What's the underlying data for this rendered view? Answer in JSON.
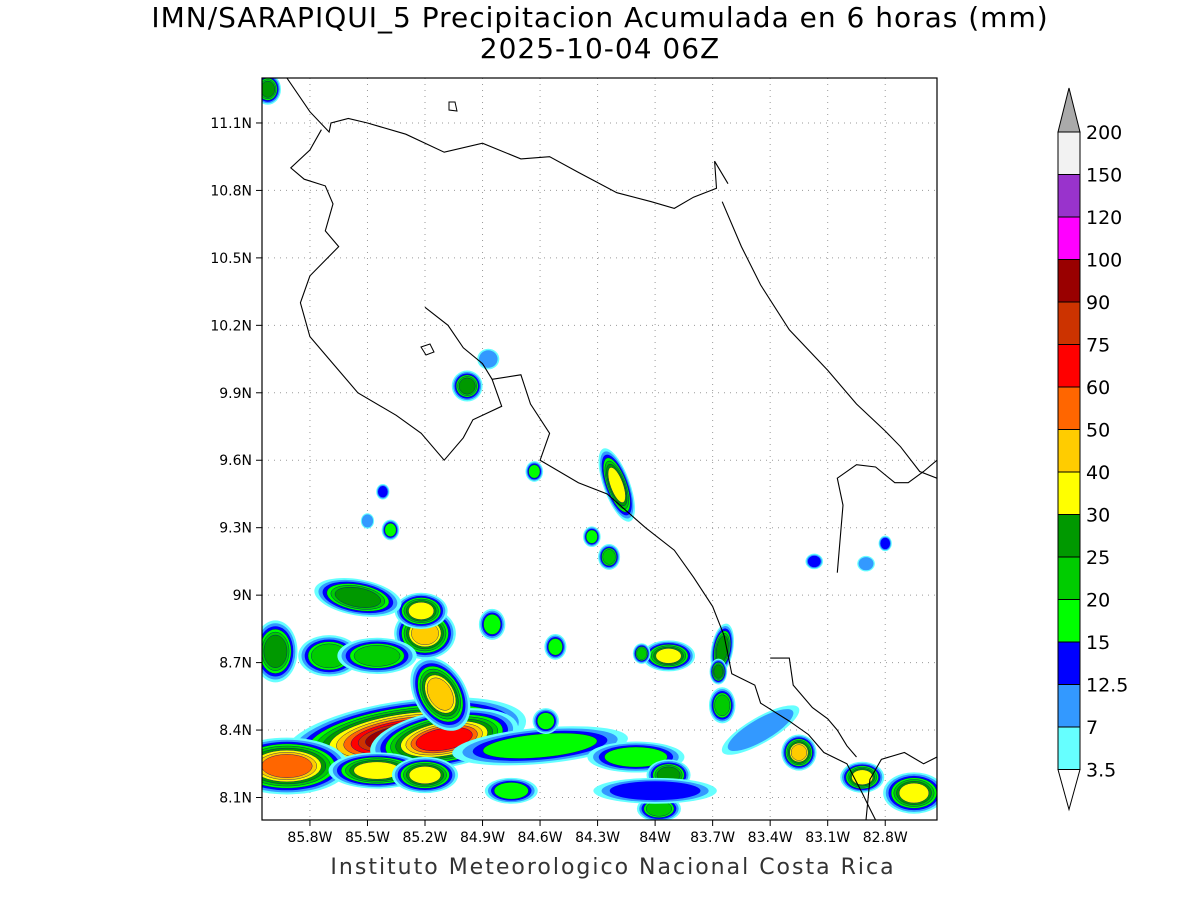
{
  "title": {
    "line1": "IMN/SARAPIQUI_5 Precipitacion Acumulada en 6 horas (mm)",
    "line2": "2025-10-04 06Z"
  },
  "footer": "Instituto Meteorologico Nacional Costa Rica",
  "map": {
    "lon_range": [
      -86.05,
      -82.53
    ],
    "lat_range": [
      8.0,
      11.3
    ],
    "lon_ticks": [
      {
        "value": -85.8,
        "label": "85.8W"
      },
      {
        "value": -85.5,
        "label": "85.5W"
      },
      {
        "value": -85.2,
        "label": "85.2W"
      },
      {
        "value": -84.9,
        "label": "84.9W"
      },
      {
        "value": -84.6,
        "label": "84.6W"
      },
      {
        "value": -84.3,
        "label": "84.3W"
      },
      {
        "value": -84.0,
        "label": "84W"
      },
      {
        "value": -83.7,
        "label": "83.7W"
      },
      {
        "value": -83.4,
        "label": "83.4W"
      },
      {
        "value": -83.1,
        "label": "83.1W"
      },
      {
        "value": -82.8,
        "label": "82.8W"
      }
    ],
    "lat_ticks": [
      {
        "value": 8.1,
        "label": "8.1N"
      },
      {
        "value": 8.4,
        "label": "8.4N"
      },
      {
        "value": 8.7,
        "label": "8.7N"
      },
      {
        "value": 9.0,
        "label": "9N"
      },
      {
        "value": 9.3,
        "label": "9.3N"
      },
      {
        "value": 9.6,
        "label": "9.6N"
      },
      {
        "value": 9.9,
        "label": "9.9N"
      },
      {
        "value": 10.2,
        "label": "10.2N"
      },
      {
        "value": 10.5,
        "label": "10.5N"
      },
      {
        "value": 10.8,
        "label": "10.8N"
      },
      {
        "value": 11.1,
        "label": "11.1N"
      }
    ],
    "grid": "dotted"
  },
  "legend": {
    "top_label": "200",
    "classes": [
      {
        "label": "3.5",
        "color": "#ffffff"
      },
      {
        "label": "7",
        "color": "#66ffff"
      },
      {
        "label": "12.5",
        "color": "#3399ff"
      },
      {
        "label": "15",
        "color": "#0000ff"
      },
      {
        "label": "20",
        "color": "#00ff00"
      },
      {
        "label": "25",
        "color": "#00cc00"
      },
      {
        "label": "30",
        "color": "#009900"
      },
      {
        "label": "40",
        "color": "#ffff00"
      },
      {
        "label": "50",
        "color": "#ffcc00"
      },
      {
        "label": "60",
        "color": "#ff6600"
      },
      {
        "label": "75",
        "color": "#ff0000"
      },
      {
        "label": "90",
        "color": "#cc3300"
      },
      {
        "label": "100",
        "color": "#990000"
      },
      {
        "label": "120",
        "color": "#ff00ff"
      },
      {
        "label": "150",
        "color": "#9933cc"
      },
      {
        "label": "200",
        "color": "#f2f2f2"
      }
    ],
    "over_color": "#aaaaaa"
  },
  "precip_cells": [
    {
      "lon": -85.3,
      "lat": 8.37,
      "a": 0.55,
      "b": 0.14,
      "rot": -8,
      "level": 12
    },
    {
      "lon": -85.1,
      "lat": 8.36,
      "a": 0.34,
      "b": 0.11,
      "rot": -10,
      "level": 10
    },
    {
      "lon": -85.12,
      "lat": 8.56,
      "a": 0.18,
      "b": 0.1,
      "rot": 60,
      "level": 8
    },
    {
      "lon": -85.2,
      "lat": 8.83,
      "a": 0.14,
      "b": 0.1,
      "rot": 0,
      "level": 8
    },
    {
      "lon": -85.22,
      "lat": 8.93,
      "a": 0.12,
      "b": 0.07,
      "rot": 0,
      "level": 7
    },
    {
      "lon": -85.55,
      "lat": 8.99,
      "a": 0.2,
      "b": 0.07,
      "rot": 10,
      "level": 6
    },
    {
      "lon": -85.7,
      "lat": 8.73,
      "a": 0.14,
      "b": 0.08,
      "rot": 0,
      "level": 5
    },
    {
      "lon": -85.45,
      "lat": 8.73,
      "a": 0.18,
      "b": 0.07,
      "rot": 0,
      "level": 5
    },
    {
      "lon": -85.92,
      "lat": 8.24,
      "a": 0.28,
      "b": 0.11,
      "rot": 0,
      "level": 9
    },
    {
      "lon": -85.45,
      "lat": 8.22,
      "a": 0.22,
      "b": 0.07,
      "rot": 0,
      "level": 7
    },
    {
      "lon": -85.2,
      "lat": 8.2,
      "a": 0.15,
      "b": 0.07,
      "rot": 0,
      "level": 7
    },
    {
      "lon": -85.98,
      "lat": 8.75,
      "a": 0.1,
      "b": 0.12,
      "rot": 0,
      "level": 6
    },
    {
      "lon": -86.02,
      "lat": 11.25,
      "a": 0.06,
      "b": 0.06,
      "rot": 0,
      "level": 6
    },
    {
      "lon": -84.6,
      "lat": 8.33,
      "a": 0.4,
      "b": 0.07,
      "rot": -5,
      "level": 4
    },
    {
      "lon": -84.1,
      "lat": 8.28,
      "a": 0.22,
      "b": 0.06,
      "rot": 0,
      "level": 4
    },
    {
      "lon": -84.85,
      "lat": 8.87,
      "a": 0.06,
      "b": 0.06,
      "rot": 0,
      "level": 4
    },
    {
      "lon": -84.52,
      "lat": 8.77,
      "a": 0.05,
      "b": 0.05,
      "rot": 0,
      "level": 4
    },
    {
      "lon": -84.57,
      "lat": 8.44,
      "a": 0.06,
      "b": 0.05,
      "rot": 0,
      "level": 4
    },
    {
      "lon": -84.75,
      "lat": 8.13,
      "a": 0.12,
      "b": 0.05,
      "rot": 0,
      "level": 4
    },
    {
      "lon": -84.2,
      "lat": 9.49,
      "a": 0.06,
      "b": 0.15,
      "rot": -20,
      "level": 7
    },
    {
      "lon": -84.24,
      "lat": 9.17,
      "a": 0.05,
      "b": 0.05,
      "rot": 0,
      "level": 5
    },
    {
      "lon": -84.33,
      "lat": 9.26,
      "a": 0.04,
      "b": 0.04,
      "rot": 0,
      "level": 4
    },
    {
      "lon": -84.63,
      "lat": 9.55,
      "a": 0.04,
      "b": 0.04,
      "rot": 0,
      "level": 4
    },
    {
      "lon": -85.38,
      "lat": 9.29,
      "a": 0.04,
      "b": 0.04,
      "rot": 0,
      "level": 4
    },
    {
      "lon": -85.42,
      "lat": 9.46,
      "a": 0.03,
      "b": 0.03,
      "rot": 0,
      "level": 3
    },
    {
      "lon": -85.5,
      "lat": 9.33,
      "a": 0.03,
      "b": 0.03,
      "rot": 0,
      "level": 2
    },
    {
      "lon": -84.98,
      "lat": 9.93,
      "a": 0.07,
      "b": 0.06,
      "rot": 0,
      "level": 6
    },
    {
      "lon": -84.87,
      "lat": 10.05,
      "a": 0.05,
      "b": 0.04,
      "rot": 0,
      "level": 2
    },
    {
      "lon": -83.93,
      "lat": 8.73,
      "a": 0.12,
      "b": 0.06,
      "rot": 0,
      "level": 7
    },
    {
      "lon": -84.07,
      "lat": 8.74,
      "a": 0.04,
      "b": 0.04,
      "rot": 0,
      "level": 5
    },
    {
      "lon": -83.65,
      "lat": 8.76,
      "a": 0.05,
      "b": 0.1,
      "rot": 10,
      "level": 6
    },
    {
      "lon": -83.67,
      "lat": 8.66,
      "a": 0.04,
      "b": 0.05,
      "rot": 0,
      "level": 6
    },
    {
      "lon": -83.65,
      "lat": 8.51,
      "a": 0.06,
      "b": 0.07,
      "rot": 0,
      "level": 5
    },
    {
      "lon": -83.25,
      "lat": 8.3,
      "a": 0.08,
      "b": 0.07,
      "rot": 0,
      "level": 8
    },
    {
      "lon": -82.92,
      "lat": 8.19,
      "a": 0.1,
      "b": 0.06,
      "rot": 0,
      "level": 7
    },
    {
      "lon": -82.65,
      "lat": 8.12,
      "a": 0.14,
      "b": 0.08,
      "rot": 0,
      "level": 7
    },
    {
      "lon": -83.93,
      "lat": 8.2,
      "a": 0.1,
      "b": 0.06,
      "rot": 0,
      "level": 6
    },
    {
      "lon": -83.98,
      "lat": 8.05,
      "a": 0.1,
      "b": 0.05,
      "rot": 0,
      "level": 5
    },
    {
      "lon": -84.0,
      "lat": 8.13,
      "a": 0.28,
      "b": 0.05,
      "rot": 0,
      "level": 3
    },
    {
      "lon": -83.45,
      "lat": 8.4,
      "a": 0.2,
      "b": 0.05,
      "rot": -30,
      "level": 2
    },
    {
      "lon": -82.8,
      "lat": 9.23,
      "a": 0.03,
      "b": 0.03,
      "rot": 0,
      "level": 3
    },
    {
      "lon": -82.9,
      "lat": 9.14,
      "a": 0.04,
      "b": 0.03,
      "rot": 0,
      "level": 2
    },
    {
      "lon": -83.17,
      "lat": 9.15,
      "a": 0.04,
      "b": 0.03,
      "rot": 0,
      "level": 3
    }
  ]
}
